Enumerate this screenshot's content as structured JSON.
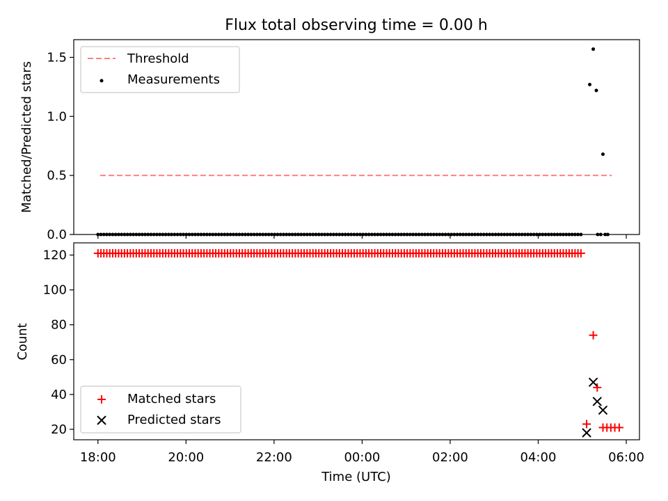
{
  "chart_data": [
    {
      "type": "scatter",
      "panel": "top",
      "title": "Flux total observing time = 0.00 h",
      "ylabel": "Matched/Predicted stars",
      "xlabel": "",
      "x_unit": "hours since 18:00 UTC on the first night",
      "xlim_hours": [
        -0.55,
        12.3
      ],
      "ylim": [
        0,
        1.65
      ],
      "yticks": [
        0.0,
        0.5,
        1.0,
        1.5
      ],
      "ytick_labels": [
        "0.0",
        "0.5",
        "1.0",
        "1.5"
      ],
      "legend_position": "upper-left",
      "legend": [
        "Threshold",
        "Measurements"
      ],
      "threshold": {
        "name": "Threshold",
        "y": 0.5,
        "x_start": 0.05,
        "x_end": 11.67,
        "color": "#ff8080",
        "style": "dashed"
      },
      "series": [
        {
          "name": "Measurements",
          "color": "#000000",
          "marker": "dot",
          "zero_run": {
            "start": 0.0,
            "end": 10.97,
            "count": 165,
            "value": 0
          },
          "points": [
            [
              11.35,
              0
            ],
            [
              11.42,
              0
            ],
            [
              11.52,
              0
            ],
            [
              11.58,
              0
            ],
            [
              11.17,
              1.27
            ],
            [
              11.25,
              1.57
            ],
            [
              11.32,
              1.22
            ],
            [
              11.47,
              0.68
            ]
          ]
        }
      ]
    },
    {
      "type": "scatter",
      "panel": "bottom",
      "xlabel": "Time (UTC)",
      "ylabel": "Count",
      "xlim_hours": [
        -0.55,
        12.3
      ],
      "ylim": [
        14,
        127
      ],
      "xticks_hours": [
        0,
        2,
        4,
        6,
        8,
        10,
        12
      ],
      "xtick_labels": [
        "18:00",
        "20:00",
        "22:00",
        "00:00",
        "02:00",
        "04:00",
        "06:00"
      ],
      "yticks": [
        20,
        40,
        60,
        80,
        100,
        120
      ],
      "ytick_labels": [
        "20",
        "40",
        "60",
        "80",
        "100",
        "120"
      ],
      "legend_position": "lower-left",
      "legend": [
        "Matched stars",
        "Predicted stars"
      ],
      "series": [
        {
          "name": "Matched stars",
          "color": "#ff0000",
          "marker": "plus",
          "constant_run": {
            "start": 0.0,
            "end": 10.97,
            "count": 165,
            "value": 121
          },
          "points": [
            [
              11.1,
              23
            ],
            [
              11.25,
              74
            ],
            [
              11.34,
              44
            ],
            [
              11.47,
              21
            ],
            [
              11.56,
              21
            ],
            [
              11.65,
              21
            ],
            [
              11.74,
              21
            ],
            [
              11.84,
              21
            ]
          ]
        },
        {
          "name": "Predicted stars",
          "color": "#000000",
          "marker": "x",
          "points": [
            [
              11.1,
              18
            ],
            [
              11.25,
              47
            ],
            [
              11.34,
              36
            ],
            [
              11.47,
              31
            ]
          ]
        }
      ]
    }
  ]
}
